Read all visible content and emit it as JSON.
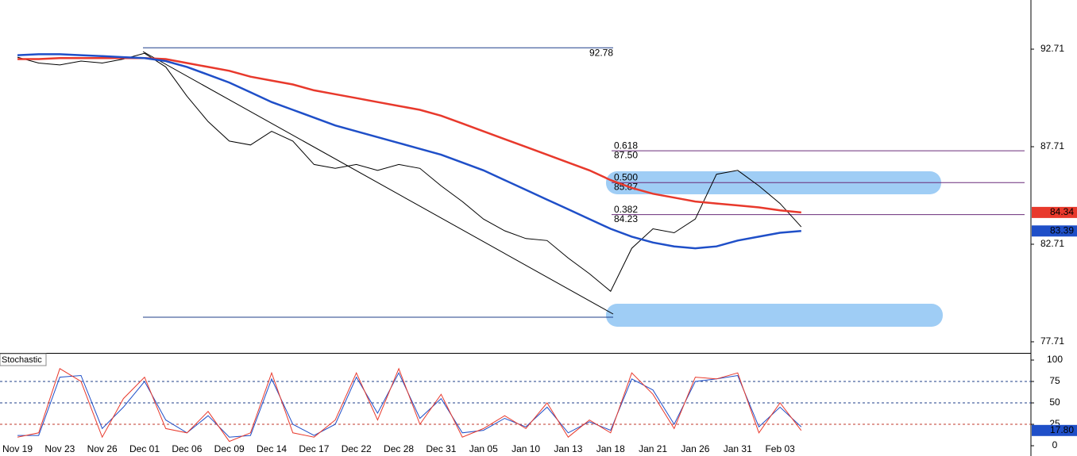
{
  "chart_data": [
    {
      "type": "line",
      "categories": [
        "Nov 19",
        null,
        "Nov 23",
        null,
        "Nov 26",
        null,
        "Dec 01",
        null,
        "Dec 06",
        null,
        "Dec 09",
        null,
        "Dec 14",
        null,
        "Dec 17",
        null,
        "Dec 22",
        null,
        "Dec 28",
        null,
        "Dec 31",
        null,
        "Jan 05",
        null,
        "Jan 10",
        null,
        "Jan 13",
        null,
        "Jan 18",
        null,
        "Jan 21",
        null,
        "Jan 26",
        null,
        "Jan 31",
        null,
        "Feb 03",
        null
      ],
      "series": [
        {
          "color": "#000000",
          "values": [
            92.3,
            92.0,
            91.9,
            92.1,
            92.0,
            92.2,
            92.5,
            91.8,
            90.3,
            89.0,
            88.0,
            87.8,
            88.5,
            88.0,
            86.8,
            86.6,
            86.8,
            86.5,
            86.8,
            86.6,
            85.7,
            84.9,
            84.0,
            83.4,
            83.0,
            82.9,
            82.0,
            81.2,
            80.3,
            82.5,
            83.5,
            83.3,
            84.0,
            86.3,
            86.5,
            85.7,
            84.8,
            83.6
          ]
        },
        {
          "color": "#e8392c",
          "values": [
            92.2,
            92.2,
            92.25,
            92.25,
            92.25,
            92.25,
            92.25,
            92.2,
            92.0,
            91.8,
            91.6,
            91.3,
            91.1,
            90.9,
            90.6,
            90.4,
            90.2,
            90.0,
            89.8,
            89.6,
            89.3,
            88.9,
            88.5,
            88.1,
            87.7,
            87.3,
            86.9,
            86.5,
            86.0,
            85.6,
            85.3,
            85.1,
            84.9,
            84.8,
            84.7,
            84.6,
            84.45,
            84.34
          ],
          "badge": true
        },
        {
          "color": "#1f4fc8",
          "values": [
            92.4,
            92.45,
            92.45,
            92.4,
            92.35,
            92.3,
            92.25,
            92.1,
            91.8,
            91.4,
            91.0,
            90.5,
            90.0,
            89.6,
            89.2,
            88.8,
            88.5,
            88.2,
            87.9,
            87.6,
            87.3,
            86.9,
            86.5,
            86.0,
            85.5,
            85.0,
            84.5,
            84.0,
            83.5,
            83.1,
            82.8,
            82.6,
            82.5,
            82.6,
            82.9,
            83.1,
            83.3,
            83.39
          ],
          "badge": true
        }
      ],
      "ylim": [
        77.14,
        95.23
      ],
      "yticks": [
        77.71,
        82.71,
        87.71,
        92.71
      ],
      "high_line": 92.78,
      "fib_levels": [
        {
          "text": "0.618",
          "value": 87.5,
          "value_label": "87.50"
        },
        {
          "text": "0.500",
          "value": 85.87,
          "value_label": "85.87"
        },
        {
          "text": "0.382",
          "value": 84.23,
          "value_label": "84.23"
        }
      ]
    },
    {
      "type": "line",
      "title": "Stochastic",
      "categories": [
        "Nov 19",
        null,
        "Nov 23",
        null,
        "Nov 26",
        null,
        "Dec 01",
        null,
        "Dec 06",
        null,
        "Dec 09",
        null,
        "Dec 14",
        null,
        "Dec 17",
        null,
        "Dec 22",
        null,
        "Dec 28",
        null,
        "Dec 31",
        null,
        "Jan 05",
        null,
        "Jan 10",
        null,
        "Jan 13",
        null,
        "Jan 18",
        null,
        "Jan 21",
        null,
        "Jan 26",
        null,
        "Jan 31",
        null,
        "Feb 03",
        null
      ],
      "series": [
        {
          "color": "#1f4fc8",
          "values": [
            12,
            12,
            80,
            82,
            20,
            45,
            75,
            30,
            15,
            35,
            10,
            12,
            78,
            25,
            12,
            25,
            80,
            38,
            85,
            32,
            55,
            15,
            18,
            32,
            22,
            45,
            15,
            28,
            18,
            78,
            65,
            25,
            75,
            78,
            82,
            22,
            45,
            22
          ]
        },
        {
          "color": "#e8392c",
          "values": [
            10,
            15,
            90,
            75,
            10,
            55,
            80,
            20,
            15,
            40,
            5,
            15,
            85,
            15,
            10,
            30,
            85,
            30,
            90,
            25,
            60,
            10,
            20,
            35,
            20,
            50,
            10,
            30,
            15,
            85,
            60,
            20,
            80,
            78,
            85,
            15,
            50,
            17.8
          ],
          "last_label": "17.80"
        }
      ],
      "ylim": [
        -12,
        106.5
      ],
      "yticks": [
        0,
        25,
        50,
        75,
        100
      ],
      "levels": [
        25,
        50,
        75
      ]
    }
  ]
}
